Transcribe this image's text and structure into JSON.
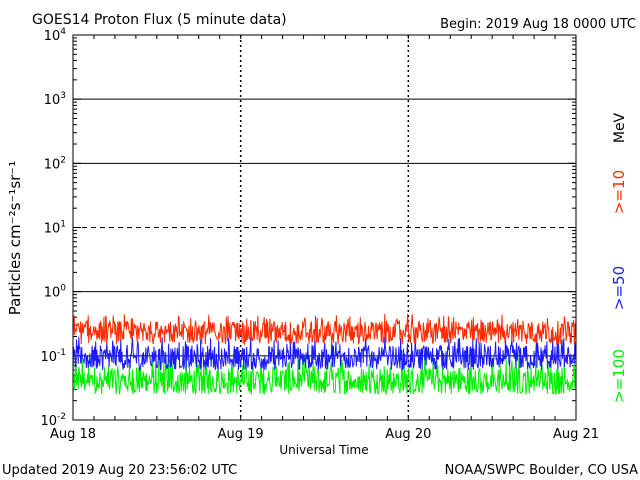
{
  "title": "GOES14 Proton Flux (5 minute data)",
  "begin_text": "Begin: 2019 Aug 18 0000 UTC",
  "updated_text": "Updated 2019 Aug 20 23:56:02 UTC",
  "credit_text": "NOAA/SWPC Boulder, CO USA",
  "colors": {
    ">=10": "#ff2a00",
    ">=50": "#1a1aff",
    ">=100": "#00ee00"
  },
  "chart_data": {
    "type": "line",
    "xlabel": "Universal Time",
    "ylabel": "Particles cm⁻²s⁻¹sr⁻¹",
    "yscale": "log",
    "ylim": [
      0.01,
      10000
    ],
    "xlim": [
      "2019-08-18",
      "2019-08-21"
    ],
    "x_tick_labels": [
      "Aug 18",
      "Aug 19",
      "Aug 20",
      "Aug 21"
    ],
    "y_tick_labels": [
      {
        "base": "10",
        "exp": "-2",
        "value": 0.01
      },
      {
        "base": "10",
        "exp": "-1",
        "value": 0.1
      },
      {
        "base": "10",
        "exp": "0",
        "value": 1
      },
      {
        "base": "10",
        "exp": "1",
        "value": 10
      },
      {
        "base": "10",
        "exp": "2",
        "value": 100
      },
      {
        "base": "10",
        "exp": "3",
        "value": 1000
      },
      {
        "base": "10",
        "exp": "4",
        "value": 10000
      }
    ],
    "unit_label": "MeV",
    "series": [
      {
        "name": ">=10",
        "typical_range": [
          0.15,
          0.45
        ],
        "median": 0.24
      },
      {
        "name": ">=50",
        "typical_range": [
          0.06,
          0.2
        ],
        "median": 0.09
      },
      {
        "name": ">=100",
        "typical_range": [
          0.025,
          0.1
        ],
        "median": 0.04
      }
    ]
  }
}
